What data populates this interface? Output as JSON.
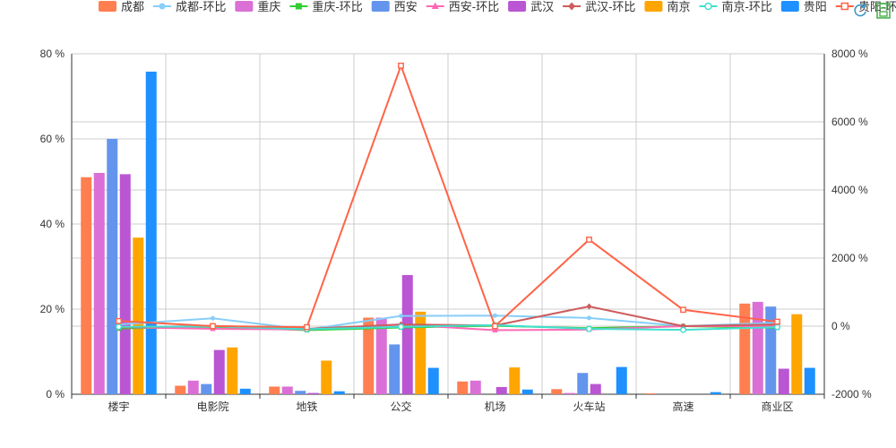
{
  "chart_data": {
    "type": "bar",
    "categories": [
      "楼宇",
      "电影院",
      "地铁",
      "公交",
      "机场",
      "火车站",
      "高速",
      "商业区"
    ],
    "y_left": {
      "ticks": [
        "0 %",
        "20 %",
        "40 %",
        "60 %",
        "80 %"
      ],
      "ylim": [
        0,
        80
      ]
    },
    "y_right": {
      "ticks": [
        "-2000 %",
        "0 %",
        "2000 %",
        "4000 %",
        "6000 %",
        "8000 %"
      ],
      "ylim": [
        -2000,
        8000
      ]
    },
    "legend_position": "top",
    "bar_series": [
      {
        "name": "成都",
        "color": "#FF7F50",
        "values": [
          51,
          2,
          1.8,
          18,
          3,
          1.2,
          0.2,
          21.3
        ]
      },
      {
        "name": "重庆",
        "color": "#DA70D6",
        "values": [
          52,
          3.2,
          1.8,
          18,
          3.2,
          0.3,
          0,
          21.7
        ]
      },
      {
        "name": "西安",
        "color": "#6495ED",
        "values": [
          60,
          2.4,
          0.8,
          11.7,
          0,
          5,
          0,
          20.6
        ]
      },
      {
        "name": "武汉",
        "color": "#BA55D3",
        "values": [
          51.7,
          10.4,
          0.3,
          28,
          1.7,
          2.4,
          0,
          6
        ]
      },
      {
        "name": "南京",
        "color": "#FFA500",
        "values": [
          36.8,
          11,
          7.9,
          19.4,
          6.3,
          0,
          0,
          18.8
        ]
      },
      {
        "name": "贵阳",
        "color": "#1E90FF",
        "values": [
          75.8,
          1.3,
          0.7,
          6.2,
          1.1,
          6.4,
          0.5,
          6.2
        ]
      }
    ],
    "line_series": [
      {
        "name": "成都-环比",
        "color": "#87CEFA",
        "marker": "circle",
        "values": [
          50,
          230,
          -100,
          300,
          310,
          240,
          0,
          100
        ]
      },
      {
        "name": "重庆-环比",
        "color": "#32CD32",
        "marker": "square",
        "values": [
          -70,
          -20,
          -120,
          -40,
          10,
          -60,
          0,
          -50
        ]
      },
      {
        "name": "西安-环比",
        "color": "#FF69B4",
        "marker": "triangle",
        "values": [
          -30,
          -80,
          -100,
          50,
          -120,
          -100,
          0,
          0
        ]
      },
      {
        "name": "武汉-环比",
        "color": "#CD5C5C",
        "marker": "diamond",
        "values": [
          -40,
          10,
          -80,
          50,
          20,
          580,
          0,
          50
        ]
      },
      {
        "name": "南京-环比",
        "color": "#40E0D0",
        "marker": "circle-hollow",
        "values": [
          -20,
          -10,
          -90,
          -20,
          30,
          -80,
          -110,
          -30
        ]
      },
      {
        "name": "贵阳-环比",
        "color": "#FF6347",
        "marker": "square-hollow",
        "values": [
          150,
          0,
          -30,
          7650,
          0,
          2540,
          480,
          130
        ]
      }
    ]
  },
  "toolbar": {
    "restore_icon": "refresh-icon",
    "save_icon": "save-image-icon"
  }
}
